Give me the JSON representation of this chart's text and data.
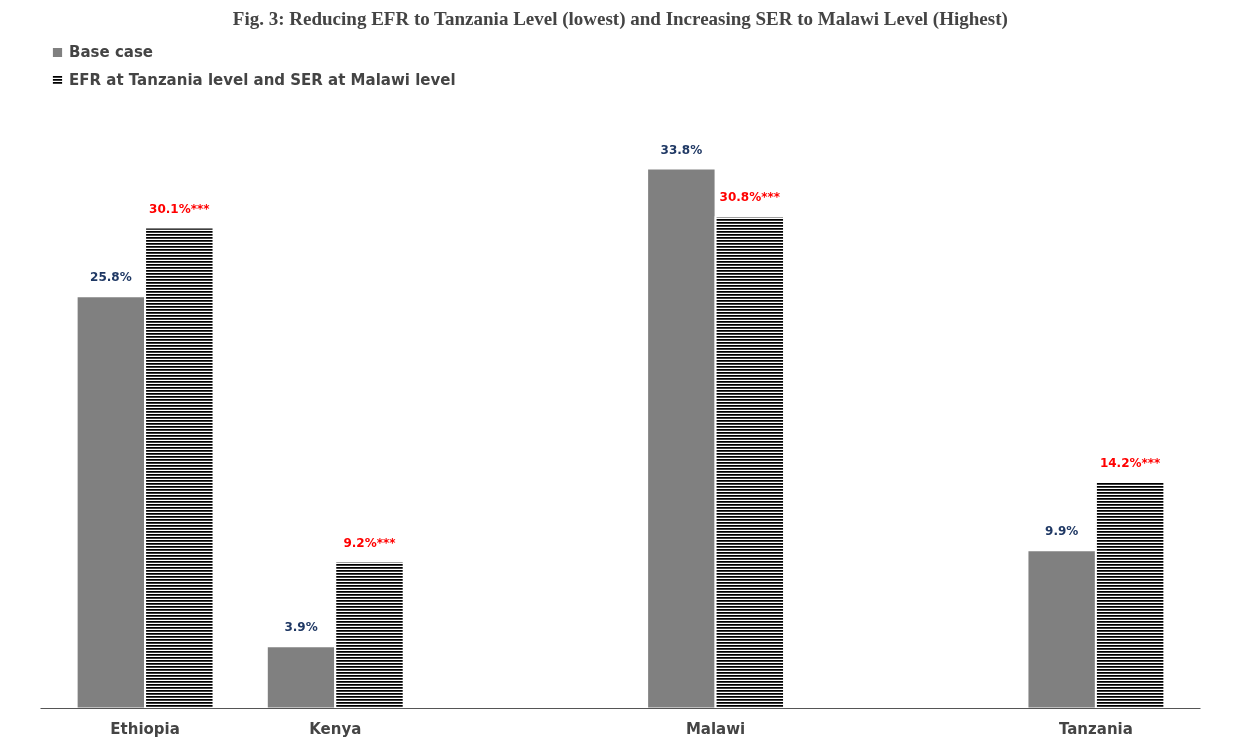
{
  "chart_data": {
    "type": "bar",
    "title": "Fig. 3: Reducing EFR to Tanzania Level (lowest) and Increasing SER to Malawi Level (Highest)",
    "categories": [
      "Ethiopia",
      "Kenya",
      null,
      "Malawi",
      null,
      "Tanzania"
    ],
    "series": [
      {
        "name": "Base case",
        "color": "#808080",
        "values": [
          25.8,
          3.9,
          null,
          33.8,
          null,
          9.9
        ],
        "value_labels": [
          "25.8%",
          "3.9%",
          null,
          "33.8%",
          null,
          "9.9%"
        ]
      },
      {
        "name": "EFR at Tanzania level and SER at Malawi level",
        "color": "#000000",
        "values": [
          30.1,
          9.2,
          null,
          30.8,
          null,
          14.2
        ],
        "value_labels": [
          "30.1%***",
          "9.2%***",
          null,
          "30.8%***",
          null,
          "14.2%***"
        ]
      }
    ],
    "legend": "top left"
  }
}
